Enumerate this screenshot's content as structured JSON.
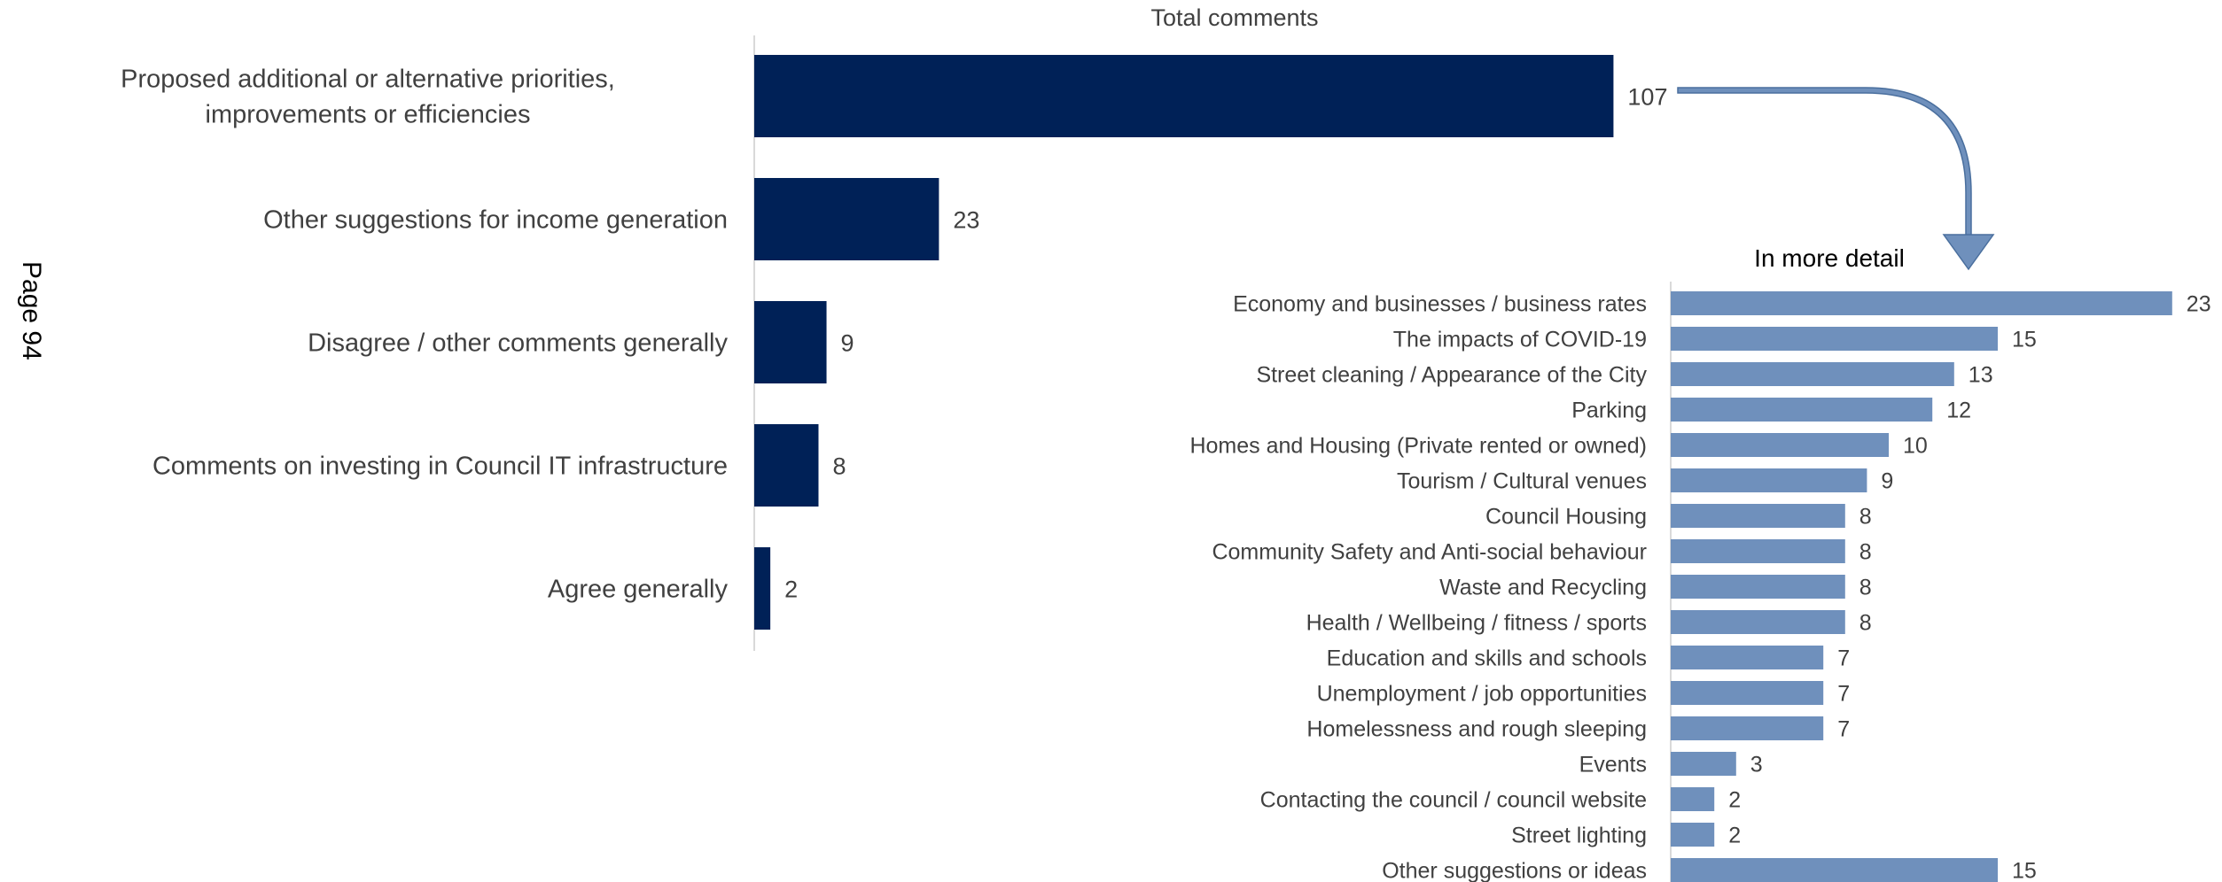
{
  "page_note": "Page 94",
  "chart_data": [
    {
      "type": "bar",
      "orientation": "horizontal",
      "title": "Total comments",
      "categories": [
        "Proposed additional or alternative priorities, improvements or efficiencies",
        "Other suggestions for income generation",
        "Disagree / other comments generally",
        "Comments on investing in Council IT infrastructure",
        "Agree generally"
      ],
      "values": [
        107,
        23,
        9,
        8,
        2
      ],
      "color": "#002157",
      "grid": false,
      "legend": "none"
    },
    {
      "type": "bar",
      "orientation": "horizontal",
      "title": "In more detail",
      "categories": [
        "Economy and businesses / business rates",
        "The impacts of COVID-19",
        "Street cleaning / Appearance of the City",
        "Parking",
        "Homes and Housing (Private rented or owned)",
        "Tourism / Cultural venues",
        "Council Housing",
        "Community Safety and Anti-social behaviour",
        "Waste and Recycling",
        "Health / Wellbeing / fitness / sports",
        "Education and skills and schools",
        "Unemployment / job opportunities",
        "Homelessness and rough sleeping",
        "Events",
        "Contacting the council / council website",
        "Street lighting",
        "Other suggestions or ideas"
      ],
      "values": [
        23,
        15,
        13,
        12,
        10,
        9,
        8,
        8,
        8,
        8,
        7,
        7,
        7,
        3,
        2,
        2,
        15
      ],
      "color": "#6f90bc",
      "grid": false,
      "legend": "none"
    }
  ]
}
